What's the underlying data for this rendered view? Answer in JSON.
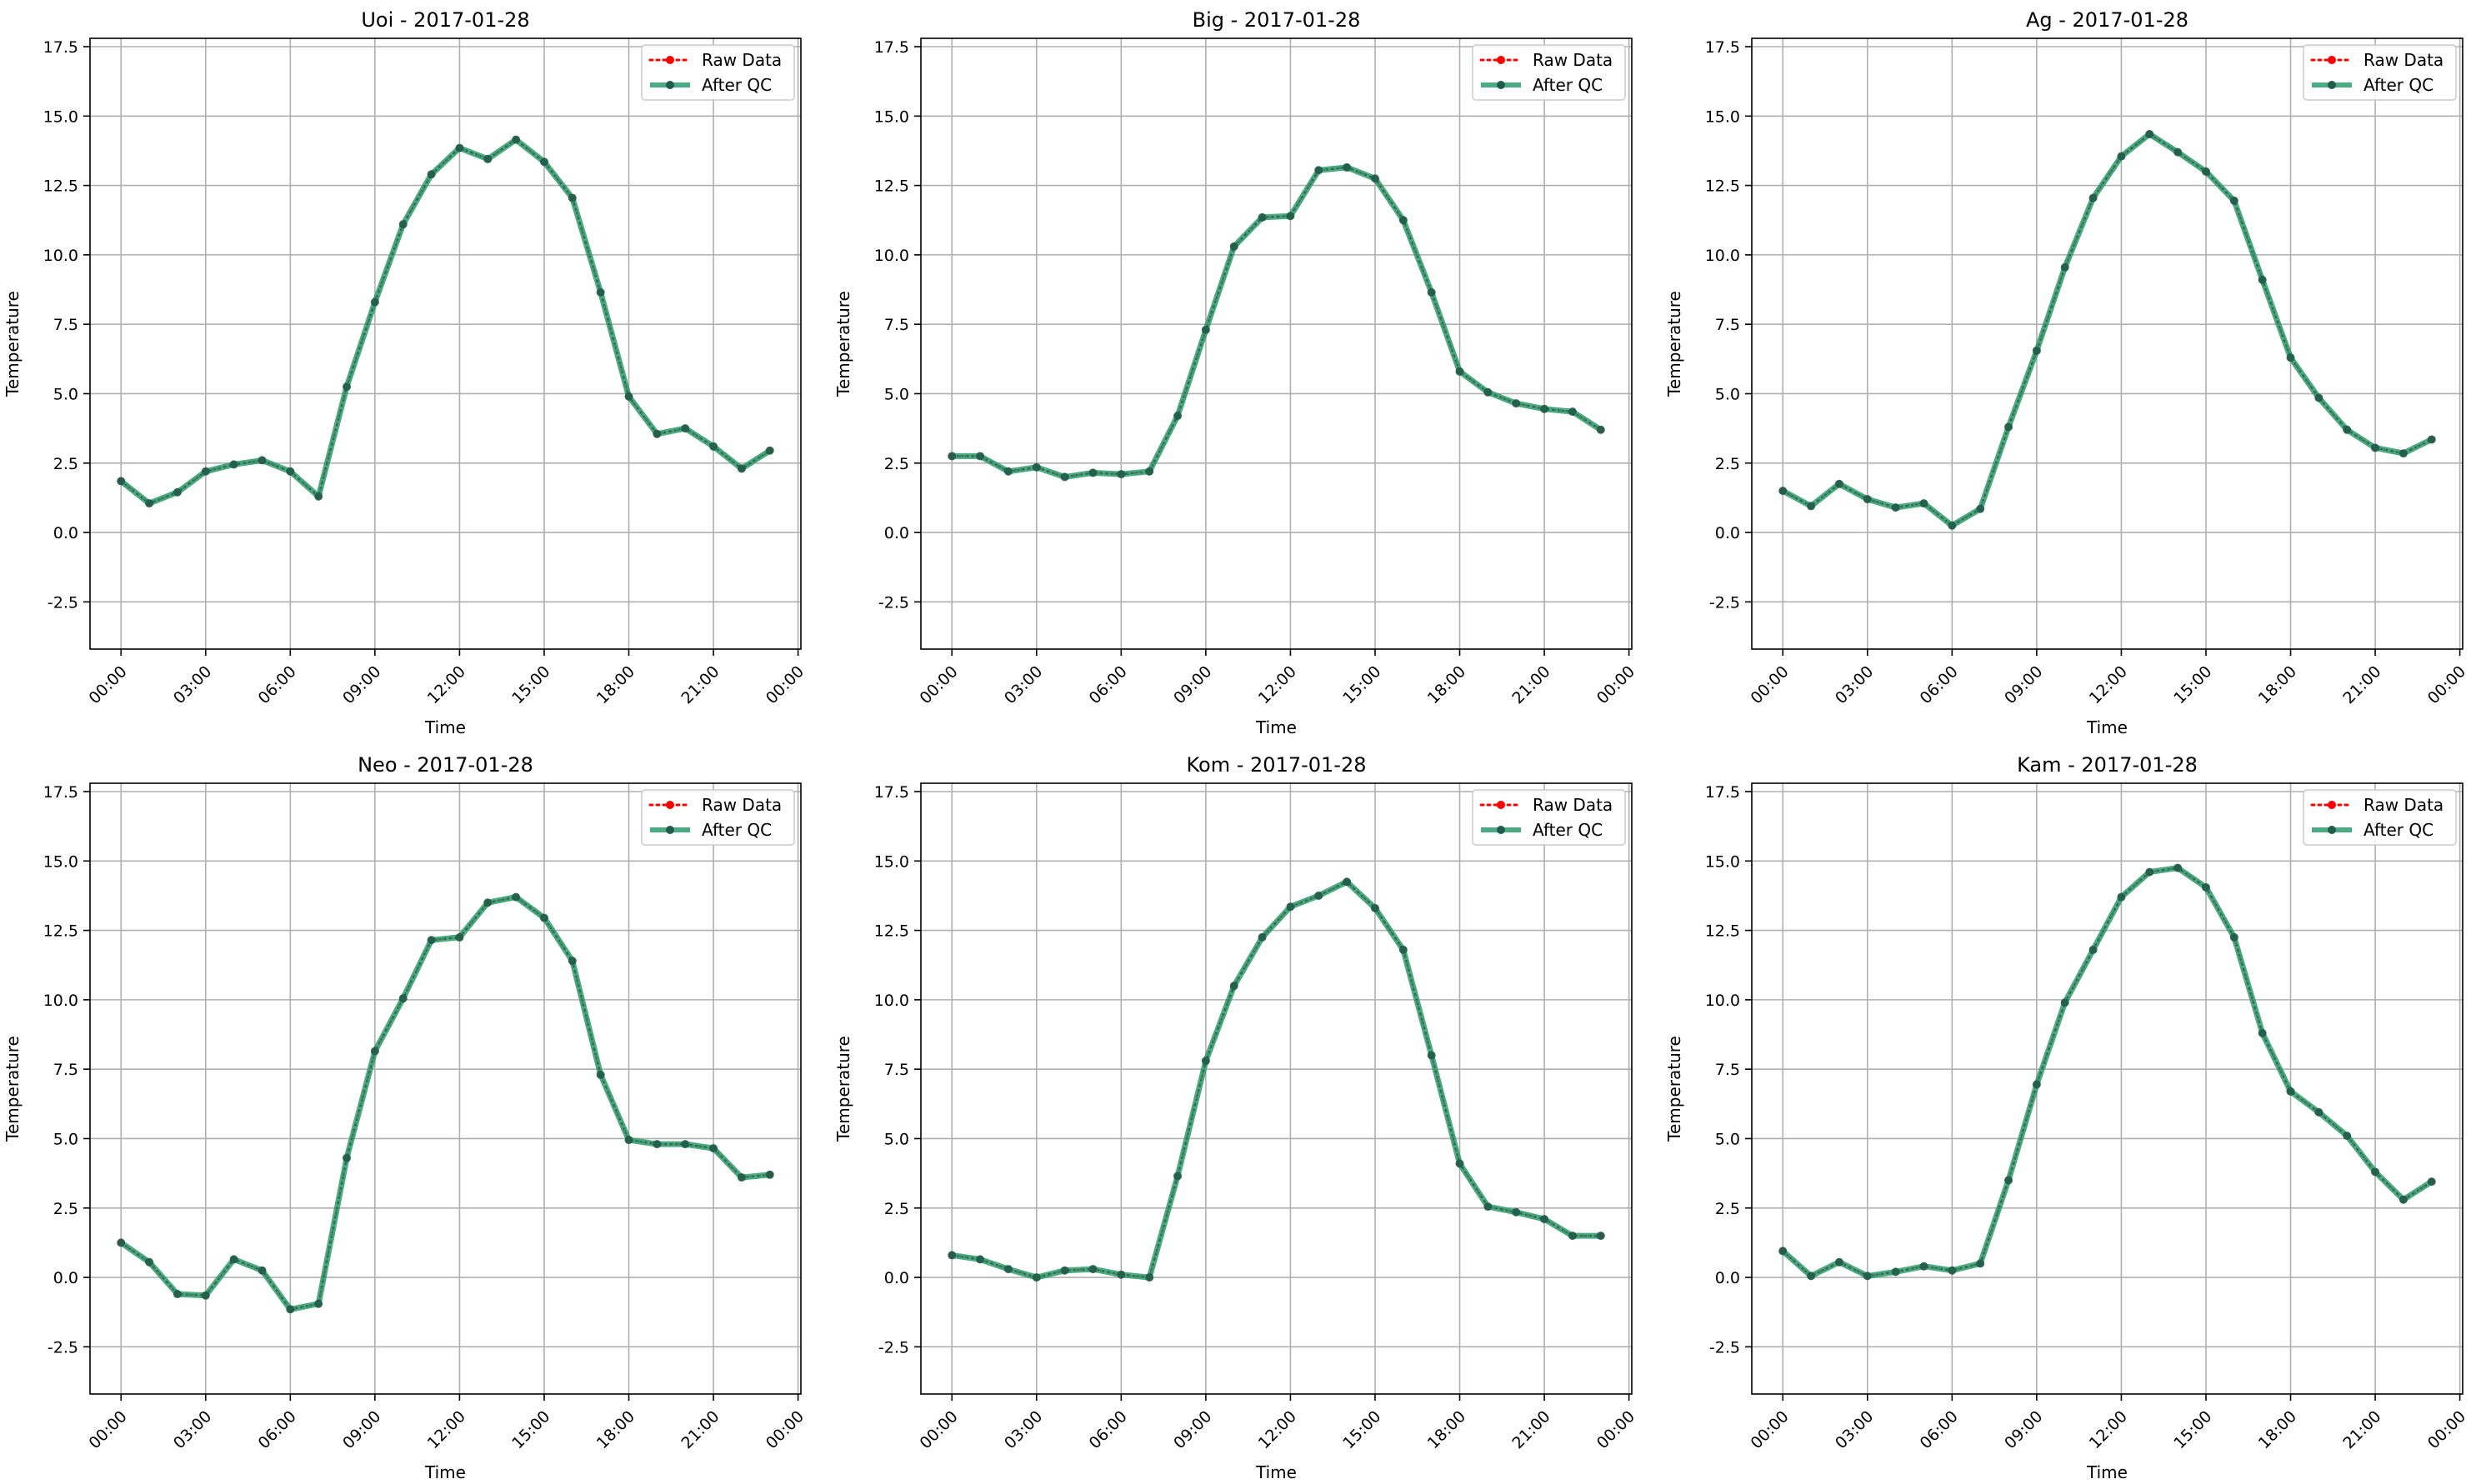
{
  "chart_data": [
    {
      "type": "line",
      "title": "Uoi - 2017-01-28",
      "xlabel": "Time",
      "ylabel": "Temperature",
      "xlim": [
        "2017-01-27 22:54",
        "2017-01-29 00:06"
      ],
      "ylim": [
        -4.2,
        17.8
      ],
      "yticks": [
        -2.5,
        0.0,
        2.5,
        5.0,
        7.5,
        10.0,
        12.5,
        15.0,
        17.5
      ],
      "xticks": [
        "00:00",
        "03:00",
        "06:00",
        "09:00",
        "12:00",
        "15:00",
        "18:00",
        "21:00",
        "00:00"
      ],
      "grid": true,
      "legend_position": "upper right",
      "x": [
        "00:00",
        "01:00",
        "02:00",
        "03:00",
        "04:00",
        "05:00",
        "06:00",
        "07:00",
        "08:00",
        "09:00",
        "10:00",
        "11:00",
        "12:00",
        "13:00",
        "14:00",
        "15:00",
        "16:00",
        "17:00",
        "18:00",
        "19:00",
        "20:00",
        "21:00",
        "22:00",
        "23:00"
      ],
      "series": [
        {
          "name": "Raw Data",
          "color": "#ff0000",
          "values": [
            1.85,
            1.05,
            1.45,
            2.2,
            2.45,
            2.6,
            2.2,
            1.3,
            5.25,
            8.3,
            11.1,
            12.9,
            13.85,
            13.45,
            14.15,
            13.35,
            12.05,
            8.65,
            4.9,
            3.55,
            3.75,
            3.1,
            2.3,
            2.95
          ]
        },
        {
          "name": "After QC",
          "color": "#2a9d6f",
          "values": [
            1.85,
            1.05,
            1.45,
            2.2,
            2.45,
            2.6,
            2.2,
            1.3,
            5.25,
            8.3,
            11.1,
            12.9,
            13.85,
            13.45,
            14.15,
            13.35,
            12.05,
            8.65,
            4.9,
            3.55,
            3.75,
            3.1,
            2.3,
            2.95
          ]
        }
      ]
    },
    {
      "type": "line",
      "title": "Big - 2017-01-28",
      "xlabel": "Time",
      "ylabel": "Temperature",
      "xlim": [
        "2017-01-27 22:54",
        "2017-01-29 00:06"
      ],
      "ylim": [
        -4.2,
        17.8
      ],
      "yticks": [
        -2.5,
        0.0,
        2.5,
        5.0,
        7.5,
        10.0,
        12.5,
        15.0,
        17.5
      ],
      "xticks": [
        "00:00",
        "03:00",
        "06:00",
        "09:00",
        "12:00",
        "15:00",
        "18:00",
        "21:00",
        "00:00"
      ],
      "grid": true,
      "legend_position": "upper right",
      "x": [
        "00:00",
        "01:00",
        "02:00",
        "03:00",
        "04:00",
        "05:00",
        "06:00",
        "07:00",
        "08:00",
        "09:00",
        "10:00",
        "11:00",
        "12:00",
        "13:00",
        "14:00",
        "15:00",
        "16:00",
        "17:00",
        "18:00",
        "19:00",
        "20:00",
        "21:00",
        "22:00",
        "23:00"
      ],
      "series": [
        {
          "name": "Raw Data",
          "color": "#ff0000",
          "values": [
            2.75,
            2.75,
            2.2,
            2.35,
            2.0,
            2.15,
            2.1,
            2.2,
            4.2,
            7.3,
            10.3,
            11.35,
            11.4,
            13.05,
            13.15,
            12.75,
            11.25,
            8.65,
            5.8,
            5.05,
            4.65,
            4.45,
            4.35,
            3.7
          ]
        },
        {
          "name": "After QC",
          "color": "#2a9d6f",
          "values": [
            2.75,
            2.75,
            2.2,
            2.35,
            2.0,
            2.15,
            2.1,
            2.2,
            4.2,
            7.3,
            10.3,
            11.35,
            11.4,
            13.05,
            13.15,
            12.75,
            11.25,
            8.65,
            5.8,
            5.05,
            4.65,
            4.45,
            4.35,
            3.7
          ]
        }
      ]
    },
    {
      "type": "line",
      "title": "Ag - 2017-01-28",
      "xlabel": "Time",
      "ylabel": "Temperature",
      "xlim": [
        "2017-01-27 22:54",
        "2017-01-29 00:06"
      ],
      "ylim": [
        -4.2,
        17.8
      ],
      "yticks": [
        -2.5,
        0.0,
        2.5,
        5.0,
        7.5,
        10.0,
        12.5,
        15.0,
        17.5
      ],
      "xticks": [
        "00:00",
        "03:00",
        "06:00",
        "09:00",
        "12:00",
        "15:00",
        "18:00",
        "21:00",
        "00:00"
      ],
      "grid": true,
      "legend_position": "upper right",
      "x": [
        "00:00",
        "01:00",
        "02:00",
        "03:00",
        "04:00",
        "05:00",
        "06:00",
        "07:00",
        "08:00",
        "09:00",
        "10:00",
        "11:00",
        "12:00",
        "13:00",
        "14:00",
        "15:00",
        "16:00",
        "17:00",
        "18:00",
        "19:00",
        "20:00",
        "21:00",
        "22:00",
        "23:00"
      ],
      "series": [
        {
          "name": "Raw Data",
          "color": "#ff0000",
          "values": [
            1.5,
            0.95,
            1.75,
            1.2,
            0.9,
            1.05,
            0.25,
            0.85,
            3.8,
            6.55,
            9.55,
            12.05,
            13.55,
            14.35,
            13.7,
            13.0,
            11.95,
            9.1,
            6.3,
            4.85,
            3.7,
            3.05,
            2.85,
            3.35
          ]
        },
        {
          "name": "After QC",
          "color": "#2a9d6f",
          "values": [
            1.5,
            0.95,
            1.75,
            1.2,
            0.9,
            1.05,
            0.25,
            0.85,
            3.8,
            6.55,
            9.55,
            12.05,
            13.55,
            14.35,
            13.7,
            13.0,
            11.95,
            9.1,
            6.3,
            4.85,
            3.7,
            3.05,
            2.85,
            3.35
          ]
        }
      ]
    },
    {
      "type": "line",
      "title": "Neo - 2017-01-28",
      "xlabel": "Time",
      "ylabel": "Temperature",
      "xlim": [
        "2017-01-27 22:54",
        "2017-01-29 00:06"
      ],
      "ylim": [
        -4.2,
        17.8
      ],
      "yticks": [
        -2.5,
        0.0,
        2.5,
        5.0,
        7.5,
        10.0,
        12.5,
        15.0,
        17.5
      ],
      "xticks": [
        "00:00",
        "03:00",
        "06:00",
        "09:00",
        "12:00",
        "15:00",
        "18:00",
        "21:00",
        "00:00"
      ],
      "grid": true,
      "legend_position": "upper right",
      "x": [
        "00:00",
        "01:00",
        "02:00",
        "03:00",
        "04:00",
        "05:00",
        "06:00",
        "07:00",
        "08:00",
        "09:00",
        "10:00",
        "11:00",
        "12:00",
        "13:00",
        "14:00",
        "15:00",
        "16:00",
        "17:00",
        "18:00",
        "19:00",
        "20:00",
        "21:00",
        "22:00",
        "23:00"
      ],
      "series": [
        {
          "name": "Raw Data",
          "color": "#ff0000",
          "values": [
            1.25,
            0.55,
            -0.6,
            -0.65,
            0.65,
            0.25,
            -1.15,
            -0.95,
            4.3,
            8.15,
            10.05,
            12.15,
            12.25,
            13.5,
            13.7,
            12.95,
            11.4,
            7.3,
            4.95,
            4.8,
            4.8,
            4.65,
            3.6,
            3.7
          ]
        },
        {
          "name": "After QC",
          "color": "#2a9d6f",
          "values": [
            1.25,
            0.55,
            -0.6,
            -0.65,
            0.65,
            0.25,
            -1.15,
            -0.95,
            4.3,
            8.15,
            10.05,
            12.15,
            12.25,
            13.5,
            13.7,
            12.95,
            11.4,
            7.3,
            4.95,
            4.8,
            4.8,
            4.65,
            3.6,
            3.7
          ]
        }
      ]
    },
    {
      "type": "line",
      "title": "Kom - 2017-01-28",
      "xlabel": "Time",
      "ylabel": "Temperature",
      "xlim": [
        "2017-01-27 22:54",
        "2017-01-29 00:06"
      ],
      "ylim": [
        -4.2,
        17.8
      ],
      "yticks": [
        -2.5,
        0.0,
        2.5,
        5.0,
        7.5,
        10.0,
        12.5,
        15.0,
        17.5
      ],
      "xticks": [
        "00:00",
        "03:00",
        "06:00",
        "09:00",
        "12:00",
        "15:00",
        "18:00",
        "21:00",
        "00:00"
      ],
      "grid": true,
      "legend_position": "upper right",
      "x": [
        "00:00",
        "01:00",
        "02:00",
        "03:00",
        "04:00",
        "05:00",
        "06:00",
        "07:00",
        "08:00",
        "09:00",
        "10:00",
        "11:00",
        "12:00",
        "13:00",
        "14:00",
        "15:00",
        "16:00",
        "17:00",
        "18:00",
        "19:00",
        "20:00",
        "21:00",
        "22:00",
        "23:00"
      ],
      "series": [
        {
          "name": "Raw Data",
          "color": "#ff0000",
          "values": [
            0.8,
            0.65,
            0.3,
            0.0,
            0.25,
            0.3,
            0.1,
            0.0,
            3.65,
            7.8,
            10.5,
            12.25,
            13.35,
            13.75,
            14.25,
            13.3,
            11.8,
            8.0,
            4.1,
            2.55,
            2.35,
            2.1,
            1.5,
            1.5
          ]
        },
        {
          "name": "After QC",
          "color": "#2a9d6f",
          "values": [
            0.8,
            0.65,
            0.3,
            0.0,
            0.25,
            0.3,
            0.1,
            0.0,
            3.65,
            7.8,
            10.5,
            12.25,
            13.35,
            13.75,
            14.25,
            13.3,
            11.8,
            8.0,
            4.1,
            2.55,
            2.35,
            2.1,
            1.5,
            1.5
          ]
        }
      ]
    },
    {
      "type": "line",
      "title": "Kam - 2017-01-28",
      "xlabel": "Time",
      "ylabel": "Temperature",
      "xlim": [
        "2017-01-27 22:54",
        "2017-01-29 00:06"
      ],
      "ylim": [
        -4.2,
        17.8
      ],
      "yticks": [
        -2.5,
        0.0,
        2.5,
        5.0,
        7.5,
        10.0,
        12.5,
        15.0,
        17.5
      ],
      "xticks": [
        "00:00",
        "03:00",
        "06:00",
        "09:00",
        "12:00",
        "15:00",
        "18:00",
        "21:00",
        "00:00"
      ],
      "grid": true,
      "legend_position": "upper right",
      "x": [
        "00:00",
        "01:00",
        "02:00",
        "03:00",
        "04:00",
        "05:00",
        "06:00",
        "07:00",
        "08:00",
        "09:00",
        "10:00",
        "11:00",
        "12:00",
        "13:00",
        "14:00",
        "15:00",
        "16:00",
        "17:00",
        "18:00",
        "19:00",
        "20:00",
        "21:00",
        "22:00",
        "23:00"
      ],
      "series": [
        {
          "name": "Raw Data",
          "color": "#ff0000",
          "values": [
            0.95,
            0.05,
            0.55,
            0.05,
            0.2,
            0.4,
            0.25,
            0.5,
            3.5,
            6.95,
            9.9,
            11.8,
            13.7,
            14.6,
            14.75,
            14.05,
            12.25,
            8.8,
            6.7,
            5.95,
            5.1,
            3.8,
            2.8,
            3.45
          ]
        },
        {
          "name": "After QC",
          "color": "#2a9d6f",
          "values": [
            0.95,
            0.05,
            0.55,
            0.05,
            0.2,
            0.4,
            0.25,
            0.5,
            3.5,
            6.95,
            9.9,
            11.8,
            13.7,
            14.6,
            14.75,
            14.05,
            12.25,
            8.8,
            6.7,
            5.95,
            5.1,
            3.8,
            2.8,
            3.45
          ]
        }
      ]
    }
  ],
  "colors": {
    "raw": "#ff0000",
    "qc_line": "#2a9d6f",
    "qc_marker": "#1f5d4a",
    "grid": "#b0b0b0",
    "axes": "#000000"
  }
}
